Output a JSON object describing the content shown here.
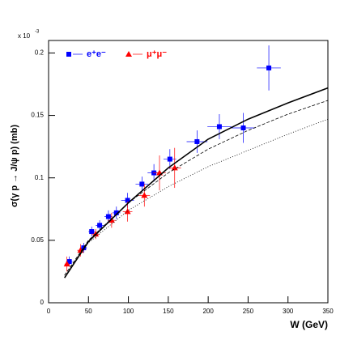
{
  "chart_data": {
    "type": "scatter",
    "x_label": "W (GeV)",
    "y_label": "σ(γ p → J/ψ p) (mb)",
    "y_multiplier": "x 10",
    "y_multiplier_exp": "-3",
    "xlim": [
      0,
      350
    ],
    "xticks": [
      0,
      50,
      100,
      150,
      200,
      250,
      300,
      350
    ],
    "ylim": [
      0,
      0.21
    ],
    "yticks": [
      0,
      0.05,
      0.1,
      0.15,
      0.2
    ],
    "series": [
      {
        "name": "e⁺e⁻",
        "color": "#0000ff",
        "marker": "square",
        "x": [
          26,
          44,
          54,
          64,
          75,
          85,
          99,
          117,
          132,
          152,
          186,
          214,
          244,
          276
        ],
        "values": [
          0.033,
          0.044,
          0.057,
          0.062,
          0.069,
          0.072,
          0.082,
          0.095,
          0.104,
          0.115,
          0.129,
          0.141,
          0.14,
          0.188
        ],
        "xerr": [
          4,
          4,
          4,
          5,
          5,
          5,
          8,
          8,
          8,
          8,
          13,
          15,
          15,
          15
        ],
        "yerr": [
          0.004,
          0.004,
          0.004,
          0.004,
          0.005,
          0.005,
          0.006,
          0.006,
          0.007,
          0.008,
          0.009,
          0.01,
          0.012,
          0.018
        ]
      },
      {
        "name": "μ⁺μ⁻",
        "color": "#ff0000",
        "marker": "triangle",
        "x": [
          23,
          40,
          59,
          79,
          99,
          120,
          139,
          158
        ],
        "values": [
          0.031,
          0.042,
          0.055,
          0.066,
          0.073,
          0.086,
          0.104,
          0.108
        ],
        "xerr": [
          3,
          4,
          5,
          5,
          6,
          7,
          8,
          8
        ],
        "yerr": [
          0.006,
          0.005,
          0.004,
          0.006,
          0.008,
          0.009,
          0.014,
          0.016
        ]
      },
      {
        "color": "#000000",
        "line_style": "solid",
        "x": [
          20,
          50,
          100,
          150,
          200,
          250,
          300,
          350
        ],
        "values": [
          0.02,
          0.049,
          0.08,
          0.108,
          0.131,
          0.147,
          0.16,
          0.172
        ]
      },
      {
        "color": "#000000",
        "line_style": "dashed",
        "x": [
          20,
          50,
          100,
          150,
          200,
          250,
          300,
          350
        ],
        "values": [
          0.022,
          0.05,
          0.08,
          0.104,
          0.123,
          0.138,
          0.151,
          0.162
        ]
      },
      {
        "color": "#000000",
        "line_style": "dotted",
        "x": [
          20,
          50,
          100,
          150,
          200,
          250,
          300,
          350
        ],
        "values": [
          0.022,
          0.048,
          0.074,
          0.093,
          0.109,
          0.122,
          0.135,
          0.147
        ]
      }
    ]
  }
}
